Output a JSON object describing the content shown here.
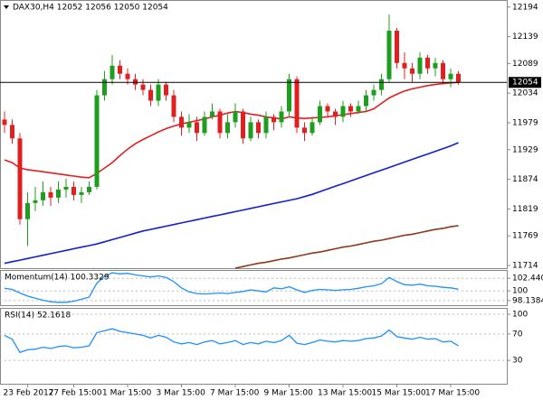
{
  "chart_data": [
    {
      "type": "candlestick",
      "title": "DAX30,H4  12052 12056 12050 12054",
      "categories": [
        null,
        null,
        null,
        "23 Feb 2017",
        null,
        null,
        null,
        null,
        null,
        "27 Feb 15:00",
        null,
        null,
        null,
        null,
        null,
        null,
        "1 Mar 15:00",
        null,
        null,
        null,
        null,
        null,
        null,
        "3 Mar 15:00",
        null,
        null,
        null,
        null,
        null,
        null,
        "7 Mar 15:00",
        null,
        null,
        null,
        null,
        null,
        null,
        "9 Mar 15:00",
        null,
        null,
        null,
        null,
        null,
        null,
        "13 Mar 15:00",
        null,
        null,
        null,
        null,
        null,
        null,
        "15 Mar 15:00",
        null,
        null,
        null,
        null,
        null,
        null,
        "17 Mar 15:00",
        null
      ],
      "open": [
        11985,
        11975,
        11950,
        11800,
        11830,
        11835,
        11850,
        11840,
        11855,
        11860,
        11845,
        11850,
        11860,
        12030,
        12060,
        12085,
        12070,
        12060,
        12050,
        12040,
        12020,
        12050,
        12030,
        11990,
        11970,
        11980,
        11960,
        11990,
        12000,
        11960,
        11980,
        12000,
        11950,
        11980,
        11960,
        11990,
        11980,
        12000,
        12060,
        11970,
        11960,
        11980,
        12010,
        12000,
        11990,
        12010,
        12000,
        12010,
        12030,
        12040,
        12060,
        12150,
        12090,
        12080,
        12070,
        12100,
        12080,
        12090,
        12060,
        12070
      ],
      "high": [
        12000,
        11985,
        11960,
        11850,
        11860,
        11870,
        11860,
        11870,
        11875,
        11870,
        11860,
        11870,
        12040,
        12075,
        12105,
        12095,
        12080,
        12070,
        12060,
        12050,
        12060,
        12055,
        12040,
        12000,
        11995,
        11990,
        12000,
        12015,
        12005,
        11995,
        12015,
        12005,
        11990,
        11985,
        12000,
        11995,
        12010,
        12070,
        12065,
        11980,
        11990,
        12020,
        12015,
        12005,
        12020,
        12015,
        12020,
        12040,
        12050,
        12070,
        12180,
        12155,
        12110,
        12090,
        12110,
        12105,
        12100,
        12095,
        12080,
        12075
      ],
      "low": [
        11960,
        11940,
        11790,
        11750,
        11815,
        11825,
        11825,
        11830,
        11840,
        11835,
        11830,
        11845,
        11855,
        12020,
        12050,
        12060,
        12050,
        12040,
        12030,
        12010,
        12010,
        12020,
        11980,
        11955,
        11960,
        11945,
        11955,
        11985,
        11950,
        11950,
        11970,
        11940,
        11945,
        11950,
        11950,
        11965,
        11970,
        11990,
        11960,
        11945,
        11955,
        11975,
        11990,
        11975,
        11980,
        11990,
        11995,
        12000,
        12020,
        12030,
        12055,
        12080,
        12060,
        12055,
        12060,
        12070,
        12065,
        12050,
        12045,
        12050
      ],
      "close": [
        11975,
        11950,
        11800,
        11830,
        11835,
        11850,
        11840,
        11855,
        11860,
        11845,
        11850,
        11860,
        12030,
        12060,
        12085,
        12070,
        12060,
        12050,
        12040,
        12020,
        12050,
        12030,
        11990,
        11970,
        11980,
        11960,
        11990,
        12000,
        11960,
        11980,
        12000,
        11950,
        11980,
        11960,
        11990,
        11980,
        12000,
        12060,
        11970,
        11960,
        11980,
        12010,
        12000,
        11990,
        12010,
        12000,
        12010,
        12030,
        12040,
        12060,
        12150,
        12090,
        12080,
        12070,
        12100,
        12080,
        12090,
        12060,
        12070,
        12054
      ],
      "up_color": "#1e9e1e",
      "down_color": "#e02020",
      "series": [
        {
          "color": "#e02020",
          "values": [
            11910,
            11905,
            11895,
            11892,
            11890,
            11888,
            11886,
            11884,
            11882,
            11880,
            11878,
            11877,
            11885,
            11895,
            11905,
            11918,
            11930,
            11940,
            11948,
            11955,
            11962,
            11968,
            11973,
            11977,
            11980,
            11983,
            11986,
            11990,
            11993,
            11997,
            12000,
            11998,
            11995,
            11993,
            11990,
            11988,
            11986,
            11990,
            11988,
            11987,
            11988,
            11989,
            11990,
            11992,
            11994,
            11996,
            11998,
            12000,
            12005,
            12015,
            12025,
            12032,
            12038,
            12042,
            12045,
            12048,
            12050,
            12052,
            12053,
            12054
          ]
        },
        {
          "color": "#1020d0",
          "values": [
            11718,
            11721,
            11724,
            11727,
            11730,
            11733,
            11736,
            11739,
            11742,
            11745,
            11748,
            11751,
            11754,
            11758,
            11762,
            11766,
            11770,
            11774,
            11778,
            11781,
            11784,
            11787,
            11790,
            11793,
            11796,
            11799,
            11802,
            11805,
            11808,
            11811,
            11814,
            11817,
            11820,
            11823,
            11826,
            11829,
            11832,
            11835,
            11838,
            11842,
            11846,
            11851,
            11856,
            11861,
            11866,
            11871,
            11876,
            11881,
            11886,
            11891,
            11896,
            11901,
            11906,
            11911,
            11916,
            11921,
            11926,
            11931,
            11936,
            11942
          ]
        },
        {
          "color": "#8b3a1a",
          "values": [
            null,
            null,
            null,
            null,
            null,
            null,
            null,
            null,
            null,
            null,
            null,
            null,
            null,
            null,
            null,
            null,
            null,
            null,
            null,
            null,
            null,
            null,
            null,
            null,
            null,
            null,
            null,
            null,
            null,
            null,
            11709,
            11712,
            11715,
            11718,
            11720,
            11723,
            11726,
            11728,
            11731,
            11734,
            11737,
            11739,
            11742,
            11745,
            11748,
            11750,
            11753,
            11756,
            11759,
            11761,
            11764,
            11767,
            11770,
            11772,
            11775,
            11778,
            11781,
            11783,
            11786,
            11788
          ]
        }
      ],
      "last_price": 12054,
      "ylim": [
        11709,
        12207
      ],
      "yticks": [
        12194,
        12139,
        12089,
        12034,
        11979,
        11929,
        11874,
        11819,
        11769,
        11714
      ]
    },
    {
      "type": "line",
      "title": "Momentum(14) 100.3329",
      "color": "#1e90ff",
      "values": [
        100.5,
        100.3,
        99.6,
        99.0,
        98.6,
        98.2,
        97.9,
        97.8,
        97.8,
        98.0,
        98.4,
        98.8,
        101.5,
        102.8,
        103.5,
        103.3,
        103.4,
        103.1,
        102.9,
        102.7,
        102.9,
        102.6,
        101.8,
        100.6,
        99.8,
        99.5,
        99.4,
        99.5,
        99.6,
        99.5,
        99.7,
        99.9,
        100.2,
        100.0,
        99.8,
        100.6,
        100.4,
        100.8,
        100.2,
        99.7,
        100.1,
        100.3,
        100.2,
        100.1,
        100.2,
        100.3,
        100.5,
        100.8,
        101.0,
        101.4,
        102.6,
        101.8,
        101.2,
        101.1,
        101.3,
        101.0,
        100.9,
        100.7,
        100.6,
        100.3329
      ],
      "ylim": [
        97.24,
        104.05
      ],
      "yticks": [
        102.4402,
        100,
        98.1384
      ]
    },
    {
      "type": "line",
      "title": "RSI(14) 52.1618",
      "color": "#1e90ff",
      "values": [
        68,
        62,
        42,
        46,
        47,
        50,
        48,
        51,
        52,
        49,
        50,
        52,
        72,
        75,
        78,
        74,
        72,
        70,
        68,
        64,
        68,
        65,
        58,
        55,
        57,
        54,
        58,
        60,
        55,
        57,
        60,
        54,
        57,
        55,
        59,
        57,
        60,
        68,
        56,
        54,
        57,
        61,
        59,
        58,
        60,
        59,
        60,
        63,
        64,
        67,
        76,
        66,
        64,
        62,
        65,
        62,
        63,
        58,
        59,
        52.1618
      ],
      "ylim": [
        -5.5,
        109.6
      ],
      "yticks": [
        100,
        70,
        30
      ]
    }
  ]
}
